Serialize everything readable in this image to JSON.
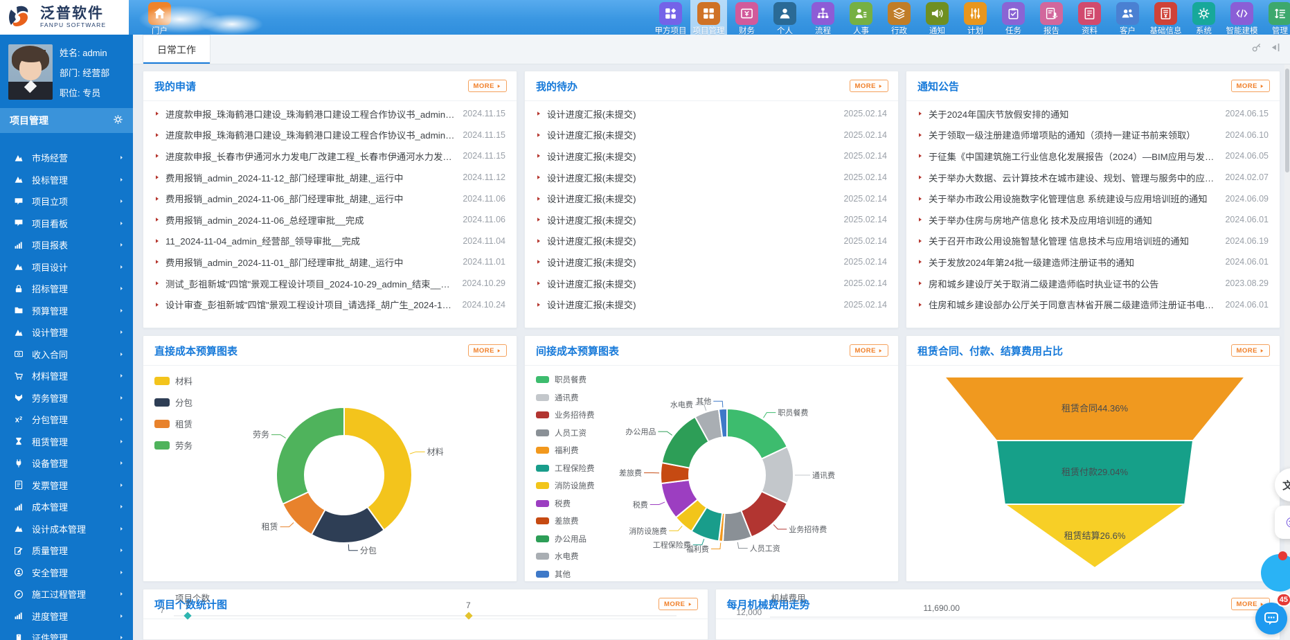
{
  "app": {
    "logo_title": "泛普软件",
    "logo_subtitle": "FANPU SOFTWARE"
  },
  "topnav": {
    "home": {
      "label": "门户",
      "icon": "home-icon",
      "color": "#ef8329"
    },
    "items": [
      {
        "label": "甲方项目",
        "icon": "grid-diamond-icon",
        "color": "#7463e8",
        "active": false
      },
      {
        "label": "项目管理",
        "icon": "grid-icon",
        "color": "#cf7226",
        "active": true
      },
      {
        "label": "财务",
        "icon": "money-note-icon",
        "color": "#d15a9b",
        "active": false
      },
      {
        "label": "个人",
        "icon": "person-icon",
        "color": "#2a6a96",
        "active": false
      },
      {
        "label": "流程",
        "icon": "flow-icon",
        "color": "#8d5cd6",
        "active": false
      },
      {
        "label": "人事",
        "icon": "person-list-icon",
        "color": "#76b043",
        "active": false
      },
      {
        "label": "行政",
        "icon": "layers-icon",
        "color": "#c07d28",
        "active": false
      },
      {
        "label": "通知",
        "icon": "speaker-icon",
        "color": "#6f8f22",
        "active": false
      },
      {
        "label": "计划",
        "icon": "sliders-icon",
        "color": "#e8961e",
        "active": false
      },
      {
        "label": "任务",
        "icon": "clipboard-icon",
        "color": "#8a64d4",
        "active": false
      },
      {
        "label": "报告",
        "icon": "report-mic-icon",
        "color": "#d2679c",
        "active": false
      },
      {
        "label": "资料",
        "icon": "document-icon",
        "color": "#d14a6e",
        "active": false
      },
      {
        "label": "客户",
        "icon": "people-icon",
        "color": "#4a80d2",
        "active": false
      },
      {
        "label": "基础信息",
        "icon": "document-yen-icon",
        "color": "#cf4238",
        "active": false
      },
      {
        "label": "系统",
        "icon": "gear-icon",
        "color": "#17a89a",
        "active": false
      },
      {
        "label": "智能建模",
        "icon": "code-icon",
        "color": "#8a5ed6",
        "active": false
      },
      {
        "label": "管理",
        "icon": "manage-list-icon",
        "color": "#3da86d",
        "active": false
      }
    ]
  },
  "sidebar": {
    "profile": {
      "name": "姓名: admin",
      "dept": "部门: 经营部",
      "title": "职位: 专员"
    },
    "section_title": "项目管理",
    "menu": [
      {
        "label": "市场经营",
        "icon": "mountain-icon"
      },
      {
        "label": "投标管理",
        "icon": "mountain-icon"
      },
      {
        "label": "项目立项",
        "icon": "comment-icon"
      },
      {
        "label": "项目看板",
        "icon": "comment-icon"
      },
      {
        "label": "项目报表",
        "icon": "bar-chart-icon"
      },
      {
        "label": "项目设计",
        "icon": "mountain-icon"
      },
      {
        "label": "招标管理",
        "icon": "lock-icon"
      },
      {
        "label": "预算管理",
        "icon": "folder-icon"
      },
      {
        "label": "设计管理",
        "icon": "mountain-icon"
      },
      {
        "label": "收入合同",
        "icon": "money-icon"
      },
      {
        "label": "材料管理",
        "icon": "cart-icon"
      },
      {
        "label": "劳务管理",
        "icon": "fox-icon"
      },
      {
        "label": "分包管理",
        "icon": "x2-icon"
      },
      {
        "label": "租赁管理",
        "icon": "hourglass-icon"
      },
      {
        "label": "设备管理",
        "icon": "plug-icon"
      },
      {
        "label": "发票管理",
        "icon": "document-icon"
      },
      {
        "label": "成本管理",
        "icon": "bar-chart-icon"
      },
      {
        "label": "设计成本管理",
        "icon": "mountain-icon"
      },
      {
        "label": "质量管理",
        "icon": "edit-icon"
      },
      {
        "label": "安全管理",
        "icon": "safety-icon"
      },
      {
        "label": "施工过程管理",
        "icon": "compass-icon"
      },
      {
        "label": "进度管理",
        "icon": "bar-chart-icon"
      },
      {
        "label": "证件管理",
        "icon": "id-badge-icon"
      }
    ]
  },
  "tabs": [
    {
      "label": "日常工作",
      "active": true
    }
  ],
  "panels": {
    "my_applications": {
      "title": "我的申请",
      "more_label": "MORE",
      "items": [
        {
          "text": "进度款申报_珠海鹤港口建设_珠海鹤港口建设工程合作协议书_admin_...",
          "date": "2024.11.15"
        },
        {
          "text": "进度款申报_珠海鹤港口建设_珠海鹤港口建设工程合作协议书_admin_...",
          "date": "2024.11.15"
        },
        {
          "text": "进度款申报_长春市伊通河水力发电厂改建工程_长春市伊通河水力发电...",
          "date": "2024.11.15"
        },
        {
          "text": "费用报销_admin_2024-11-12_部门经理审批_胡建,_运行中",
          "date": "2024.11.12"
        },
        {
          "text": "费用报销_admin_2024-11-06_部门经理审批_胡建,_运行中",
          "date": "2024.11.06"
        },
        {
          "text": "费用报销_admin_2024-11-06_总经理审批__完成",
          "date": "2024.11.06"
        },
        {
          "text": "11_2024-11-04_admin_经营部_领导审批__完成",
          "date": "2024.11.04"
        },
        {
          "text": "费用报销_admin_2024-11-01_部门经理审批_胡建,_运行中",
          "date": "2024.11.01"
        },
        {
          "text": "测试_彭祖新城\"四馆\"景观工程设计项目_2024-10-29_admin_结束__完成",
          "date": "2024.10.29"
        },
        {
          "text": "设计审查_彭祖新城\"四馆\"景观工程设计项目_请选择_胡广生_2024-10-2...",
          "date": "2024.10.24"
        }
      ]
    },
    "my_todos": {
      "title": "我的待办",
      "more_label": "MORE",
      "items": [
        {
          "text": "设计进度汇报(未提交)",
          "date": "2025.02.14"
        },
        {
          "text": "设计进度汇报(未提交)",
          "date": "2025.02.14"
        },
        {
          "text": "设计进度汇报(未提交)",
          "date": "2025.02.14"
        },
        {
          "text": "设计进度汇报(未提交)",
          "date": "2025.02.14"
        },
        {
          "text": "设计进度汇报(未提交)",
          "date": "2025.02.14"
        },
        {
          "text": "设计进度汇报(未提交)",
          "date": "2025.02.14"
        },
        {
          "text": "设计进度汇报(未提交)",
          "date": "2025.02.14"
        },
        {
          "text": "设计进度汇报(未提交)",
          "date": "2025.02.14"
        },
        {
          "text": "设计进度汇报(未提交)",
          "date": "2025.02.14"
        },
        {
          "text": "设计进度汇报(未提交)",
          "date": "2025.02.14"
        }
      ]
    },
    "notices": {
      "title": "通知公告",
      "more_label": "MORE",
      "items": [
        {
          "text": "关于2024年国庆节放假安排的通知",
          "date": "2024.06.15"
        },
        {
          "text": "关于领取一级注册建造师增项贴的通知（须持一建证书前来领取）",
          "date": "2024.06.10"
        },
        {
          "text": "于征集《中国建筑施工行业信息化发展报告（2024）—BIM应用与发展》材料...",
          "date": "2024.06.05"
        },
        {
          "text": "关于举办大数据、云计算技术在城市建设、规划、管理与服务中的应用培训班...",
          "date": "2024.02.07"
        },
        {
          "text": "关于举办市政公用设施数字化管理信息 系统建设与应用培训班的通知",
          "date": "2024.06.09"
        },
        {
          "text": "关于举办住房与房地产信息化 技术及应用培训班的通知",
          "date": "2024.06.01"
        },
        {
          "text": "关于召开市政公用设施智慧化管理 信息技术与应用培训班的通知",
          "date": "2024.06.19"
        },
        {
          "text": "关于发放2024年第24批一级建造师注册证书的通知",
          "date": "2024.06.01"
        },
        {
          "text": "房和城乡建设厅关于取消二级建造师临时执业证书的公告",
          "date": "2023.08.29"
        },
        {
          "text": "住房和城乡建设部办公厅关于同意吉林省开展二级建造师注册证书电子化试点...",
          "date": "2024.06.01"
        }
      ]
    },
    "direct_cost": {
      "title": "直接成本预算图表",
      "more_label": "MORE"
    },
    "indirect_cost": {
      "title": "间接成本预算图表",
      "more_label": "MORE"
    },
    "lease_funnel": {
      "title": "租赁合同、付款、结算费用占比",
      "more_label": "MORE"
    },
    "project_count": {
      "title": "项目个数统计图",
      "more_label": "MORE"
    },
    "machine_cost": {
      "title": "每月机械费用走势",
      "more_label": "MORE"
    }
  },
  "chart_data": [
    {
      "type": "pie",
      "subtype": "donut",
      "title": "直接成本预算图表",
      "categories": [
        "材料",
        "分包",
        "租赁",
        "劳务"
      ],
      "values_percent_estimated": [
        40,
        18,
        10,
        32
      ],
      "colors": [
        "#f3c41c",
        "#2e3e55",
        "#e8822c",
        "#4fb35c"
      ],
      "legend_position": "left",
      "labels": "category callouts around ring"
    },
    {
      "type": "pie",
      "subtype": "donut",
      "title": "间接成本预算图表",
      "categories": [
        "职员餐费",
        "通讯费",
        "业务招待费",
        "人员工资",
        "福利费",
        "工程保险费",
        "消防设施费",
        "税费",
        "差旅费",
        "办公用品",
        "水电费",
        "其他"
      ],
      "values_percent_estimated": [
        18,
        14,
        12,
        7,
        1,
        7,
        5,
        9,
        5,
        14,
        6,
        2
      ],
      "colors": [
        "#3dbc6e",
        "#c3c7cb",
        "#b23531",
        "#8a9096",
        "#f2981d",
        "#199d8b",
        "#f2c51a",
        "#9c3ec1",
        "#c64a12",
        "#2d9e57",
        "#a9aeb3",
        "#3e79c8"
      ],
      "legend_position": "left",
      "labels": "category callouts around ring"
    },
    {
      "type": "funnel",
      "title": "租赁合同、付款、结算费用占比",
      "categories": [
        "租赁合同",
        "租赁付款",
        "租赁结算"
      ],
      "values": [
        44.36,
        29.04,
        26.6
      ],
      "data_labels": [
        "租赁合同44.36%",
        "租赁付款29.04%",
        "租赁结算26.6%"
      ],
      "colors": [
        "#f0991f",
        "#16a089",
        "#f7cf26"
      ]
    },
    {
      "type": "line",
      "title": "项目个数统计图",
      "ylabel": "项目个数",
      "y_axis_visible_ticks": [
        7
      ],
      "visible_points": [
        {
          "value": 7,
          "marker_color": "#2eb5b0"
        },
        {
          "value": 7,
          "marker_color": "#e3c32e"
        }
      ],
      "layout_note": "chart cropped by bottom edge of screen"
    },
    {
      "type": "line",
      "title": "每月机械费用走势",
      "ylabel": "机械费用",
      "y_axis_visible_ticks": [
        "12,000"
      ],
      "visible_data_labels": [
        "11,690.00"
      ],
      "layout_note": "chart cropped by bottom edge of screen"
    }
  ],
  "floating": {
    "chat_badge": "45"
  }
}
